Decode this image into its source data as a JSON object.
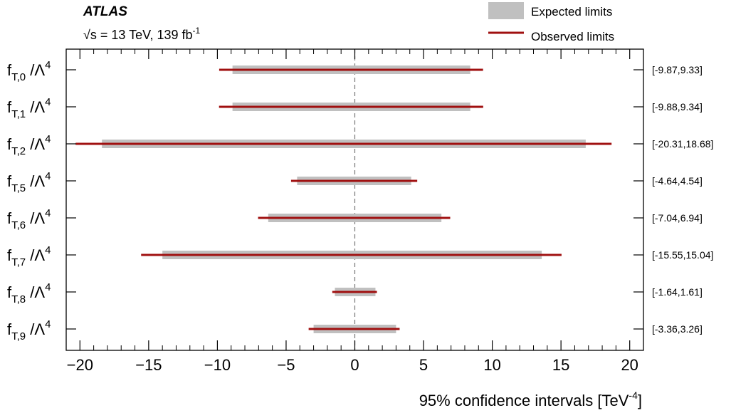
{
  "header": {
    "experiment": "ATLAS",
    "sqrt_symbol": "√s",
    "energy_text": " = 13 TeV, 139 fb",
    "energy_sup": "-1"
  },
  "chart_data": {
    "type": "interval",
    "xlabel": "95% confidence intervals [TeV",
    "xlabel_sup": "-4",
    "xlabel_close": "]",
    "xlim": [
      -21,
      21
    ],
    "xticks": [
      -20,
      -15,
      -10,
      -5,
      0,
      5,
      10,
      15,
      20
    ],
    "xtick_labels": [
      "−20",
      "−15",
      "−10",
      "−5",
      "0",
      "5",
      "10",
      "15",
      "20"
    ],
    "zero_line": "dashed",
    "legend": {
      "placement": "top-right",
      "expected": "Expected limits",
      "observed": "Observed limits"
    },
    "colors": {
      "expected": "#c0c0c0",
      "observed": "#a01010",
      "zero_line": "#777777"
    },
    "rows": [
      {
        "op": "T,0",
        "expected": [
          -8.9,
          8.4
        ],
        "observed": [
          -9.87,
          9.33
        ],
        "label": "[-9.87,9.33]"
      },
      {
        "op": "T,1",
        "expected": [
          -8.9,
          8.4
        ],
        "observed": [
          -9.88,
          9.34
        ],
        "label": "[-9.88,9.34]"
      },
      {
        "op": "T,2",
        "expected": [
          -18.4,
          16.8
        ],
        "observed": [
          -20.31,
          18.68
        ],
        "label": "[-20.31,18.68]"
      },
      {
        "op": "T,5",
        "expected": [
          -4.2,
          4.1
        ],
        "observed": [
          -4.64,
          4.54
        ],
        "label": "[-4.64,4.54]"
      },
      {
        "op": "T,6",
        "expected": [
          -6.3,
          6.3
        ],
        "observed": [
          -7.04,
          6.94
        ],
        "label": "[-7.04,6.94]"
      },
      {
        "op": "T,7",
        "expected": [
          -14.0,
          13.6
        ],
        "observed": [
          -15.55,
          15.04
        ],
        "label": "[-15.55,15.04]"
      },
      {
        "op": "T,8",
        "expected": [
          -1.45,
          1.5
        ],
        "observed": [
          -1.64,
          1.61
        ],
        "label": "[-1.64,1.61]"
      },
      {
        "op": "T,9",
        "expected": [
          -3.0,
          3.0
        ],
        "observed": [
          -3.36,
          3.26
        ],
        "label": "[-3.36,3.26]"
      }
    ]
  }
}
